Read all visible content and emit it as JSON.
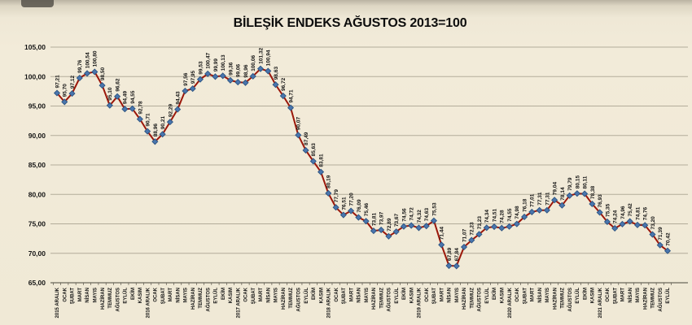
{
  "chart_data": {
    "type": "line",
    "title": "BİLEŞİK ENDEKS AĞUSTOS 2013=100",
    "legend": "none",
    "grid": true,
    "ylim": [
      65,
      105
    ],
    "ytick_step": 5,
    "ytick_labels": [
      "65,00",
      "70,00",
      "75,00",
      "80,00",
      "85,00",
      "90,00",
      "95,00",
      "100,00",
      "105,00"
    ],
    "categories": [
      "2015 ARALIK",
      "OCAK",
      "ŞUBAT",
      "MART",
      "NİSAN",
      "MAYIS",
      "HAZİRAN",
      "TEMMUZ",
      "AĞUSTOS",
      "EYLÜL",
      "EKİM",
      "KASIM",
      "2016 ARALIK",
      "OCAK",
      "ŞUBAT",
      "MART",
      "NİSAN",
      "MAYIS",
      "HAZİRAN",
      "TEMMUZ",
      "AĞUSTOS",
      "EYLÜL",
      "EKİM",
      "KASIM",
      "2017 ARALIK",
      "OCAK",
      "ŞUBAT",
      "MART",
      "NİSAN",
      "MAYIS",
      "HAZİRAN",
      "TEMMUZ",
      "AĞUSTOS",
      "EYLÜL",
      "EKİM",
      "KASIM",
      "2018 ARALIK",
      "OCAK",
      "ŞUBAT",
      "MART",
      "NİSAN",
      "MAYIS",
      "HAZİRAN",
      "TEMMUZ",
      "AĞUSTOS",
      "EYLÜL",
      "EKİM",
      "KASIM",
      "2019 ARALIK",
      "OCAK",
      "ŞUBAT",
      "MART",
      "NİSAN",
      "MAYIS",
      "HAZİRAN",
      "TEMMUZ",
      "AĞUSTOS",
      "EYLÜL",
      "EKİM",
      "KASIM",
      "2020 ARALIK",
      "OCAK",
      "ŞUBAT",
      "MART",
      "NİSAN",
      "MAYIS",
      "HAZİRAN",
      "TEMMUZ",
      "AĞUSTOS",
      "EYLÜL",
      "EKİM",
      "KASIM",
      "2021 ARALIK",
      "OCAK",
      "ŞUBAT",
      "MART",
      "NİSAN",
      "MAYIS",
      "HAZİRAN",
      "TEMMUZ",
      "AĞUSTOS",
      "EYLÜL"
    ],
    "values": [
      97.21,
      95.7,
      97.12,
      99.76,
      100.54,
      100.8,
      98.5,
      95.1,
      96.62,
      94.49,
      94.55,
      92.78,
      90.71,
      88.96,
      90.21,
      92.29,
      94.43,
      97.56,
      97.95,
      99.53,
      100.47,
      99.99,
      100.13,
      99.36,
      99.06,
      98.96,
      100.06,
      101.32,
      100.94,
      98.63,
      96.72,
      94.71,
      90.07,
      87.49,
      85.63,
      83.81,
      80.19,
      77.79,
      76.51,
      77.2,
      76.09,
      75.46,
      73.81,
      73.97,
      72.89,
      73.67,
      74.56,
      74.72,
      74.32,
      74.63,
      75.53,
      71.44,
      67.89,
      67.84,
      71.07,
      72.23,
      73.23,
      74.34,
      74.51,
      74.28,
      74.55,
      74.98,
      76.18,
      77.01,
      77.31,
      77.31,
      79.04,
      78.14,
      79.79,
      80.15,
      80.11,
      78.38,
      76.93,
      75.35,
      74.24,
      74.96,
      75.42,
      74.81,
      74.76,
      73.2,
      71.39,
      70.42
    ],
    "point_labels": [
      "97,21",
      "95,70",
      "97,12",
      "99,76",
      "100,54",
      "100,80",
      "98,50",
      "95,10",
      "96,62",
      "94,49",
      "94,55",
      "92,78",
      "90,71",
      "88,96",
      "90,21",
      "92,29",
      "94,43",
      "97,56",
      "97,95",
      "99,53",
      "100,47",
      "99,99",
      "100,13",
      "99,36",
      "99,06",
      "98,96",
      "100,06",
      "101,32",
      "100,94",
      "98,63",
      "96,72",
      "94,71",
      "90,07",
      "87,49",
      "85,63",
      "83,81",
      "80,19",
      "77,79",
      "76,51",
      "77,20",
      "76,09",
      "75,46",
      "73,81",
      "73,97",
      "72,89",
      "73,67",
      "74,56",
      "74,72",
      "74,32",
      "74,63",
      "75,53",
      "71,44",
      "67,89",
      "67,84",
      "71,07",
      "72,23",
      "73,23",
      "74,34",
      "74,51",
      "74,28",
      "74,55",
      "74,98",
      "76,18",
      "77,01",
      "77,31",
      "77,31",
      "79,04",
      "78,14",
      "79,79",
      "80,15",
      "80,11",
      "78,38",
      "76,93",
      "75,35",
      "74,24",
      "74,96",
      "75,42",
      "74,81",
      "74,76",
      "73,20",
      "71,39",
      "70,42"
    ],
    "line_color": "#9b170a",
    "marker": "diamond",
    "marker_color": "#4a76ae",
    "marker_stroke": "#2c5380",
    "grid_color": "#b3ac9a",
    "axis_color": "#4a463c",
    "text_color": "#141414",
    "background": "#f1ead8"
  }
}
